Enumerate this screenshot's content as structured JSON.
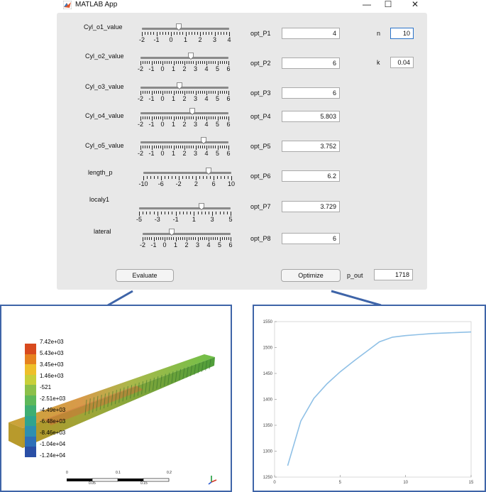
{
  "window": {
    "title": "MATLAB App",
    "minimize_glyph": "—",
    "maximize_glyph": "☐",
    "close_glyph": "✕"
  },
  "sliders": [
    {
      "label": "Cyl_o1_value",
      "ticks": [
        "-2",
        "-1",
        "0",
        "1",
        "2",
        "3",
        "4"
      ],
      "value_fraction": 0.42
    },
    {
      "label": "Cyl_o2_value",
      "ticks": [
        "-2",
        "-1",
        "0",
        "1",
        "2",
        "3",
        "4",
        "5",
        "6"
      ],
      "value_fraction": 0.57
    },
    {
      "label": "Cyl_o3_value",
      "ticks": [
        "-2",
        "-1",
        "0",
        "1",
        "2",
        "3",
        "4",
        "5",
        "6"
      ],
      "value_fraction": 0.44
    },
    {
      "label": "Cyl_o4_value",
      "ticks": [
        "-2",
        "-1",
        "0",
        "1",
        "2",
        "3",
        "4",
        "5",
        "6"
      ],
      "value_fraction": 0.59
    },
    {
      "label": "Cyl_o5_value",
      "ticks": [
        "-2",
        "-1",
        "0",
        "1",
        "2",
        "3",
        "4",
        "5",
        "6"
      ],
      "value_fraction": 0.72
    },
    {
      "label": "length_p",
      "ticks": [
        "-10",
        "-6",
        "-2",
        "2",
        "6",
        "10"
      ],
      "value_fraction": 0.74
    },
    {
      "label": "localy1",
      "ticks": [
        "-5",
        "-3",
        "-1",
        "1",
        "3",
        "5"
      ],
      "value_fraction": 0.68
    },
    {
      "label": "lateral",
      "ticks": [
        "-2",
        "-1",
        "0",
        "1",
        "2",
        "3",
        "4",
        "5",
        "6"
      ],
      "value_fraction": 0.33
    }
  ],
  "outputs": [
    {
      "label": "opt_P1",
      "value": "4"
    },
    {
      "label": "opt_P2",
      "value": "6"
    },
    {
      "label": "opt_P3",
      "value": "6"
    },
    {
      "label": "opt_P4",
      "value": "5.803"
    },
    {
      "label": "opt_P5",
      "value": "3.752"
    },
    {
      "label": "opt_P6",
      "value": "6.2"
    },
    {
      "label": "opt_P7",
      "value": "3.729"
    },
    {
      "label": "opt_P8",
      "value": "6"
    }
  ],
  "params": {
    "n_label": "n",
    "n_value": "10",
    "k_label": "k",
    "k_value": "0.04"
  },
  "buttons": {
    "evaluate": "Evaluate",
    "optimize": "Optimize"
  },
  "p_out": {
    "label": "p_out",
    "value": "1718"
  },
  "fea_view": {
    "colorbar_labels": [
      "7.42e+03",
      "5.43e+03",
      "3.45e+03",
      "1.46e+03",
      "-521",
      "-2.51e+03",
      "-4.49e+03",
      "-6.48e+03",
      "-8.46e+03",
      "-1.04e+04",
      "-1.24e+04"
    ],
    "colorbar_colors": [
      "#d84a1e",
      "#e6821f",
      "#eebf2a",
      "#c8cf3a",
      "#8cc04a",
      "#5eb85a",
      "#3fae72",
      "#30a48e",
      "#2e8fb0",
      "#2f70b8",
      "#2a4fa6"
    ],
    "scale_top": [
      "0",
      "0.1",
      "0.2"
    ],
    "scale_bottom": [
      "0.05",
      "0.15"
    ]
  },
  "chart_data": {
    "type": "line",
    "x": [
      1,
      2,
      3,
      4,
      5,
      6,
      7,
      8,
      9,
      10,
      11,
      12,
      13,
      14,
      15
    ],
    "y": [
      1272,
      1358,
      1402,
      1430,
      1453,
      1473,
      1492,
      1511,
      1520,
      1523,
      1525,
      1527,
      1528,
      1529,
      1530
    ],
    "xticks": [
      "0",
      "5",
      "10",
      "15"
    ],
    "yticks": [
      "1250",
      "1300",
      "1350",
      "1400",
      "1450",
      "1500",
      "1550"
    ],
    "xlim": [
      0,
      15
    ],
    "ylim": [
      1250,
      1550
    ],
    "line_color": "#8fc0e6",
    "grid": false
  }
}
